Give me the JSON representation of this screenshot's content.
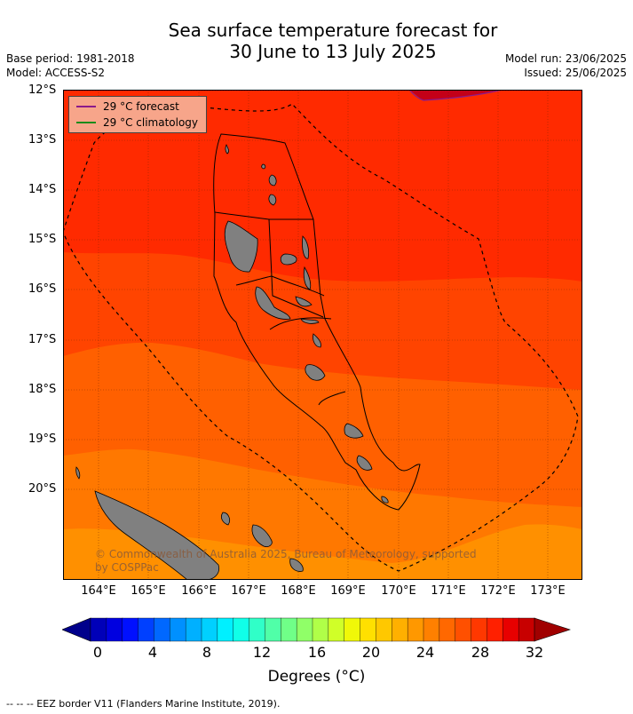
{
  "title_line1": "Sea surface temperature forecast for",
  "title_line2": "30 June to 13 July 2025",
  "base_period": "Base period: 1981-2018",
  "model": "Model: ACCESS-S2",
  "model_run": "Model run: 23/06/2025",
  "issued": "Issued: 25/06/2025",
  "lat_labels": [
    "12°S",
    "13°S",
    "14°S",
    "15°S",
    "16°S",
    "17°S",
    "18°S",
    "19°S",
    "20°S"
  ],
  "lon_labels": [
    "164°E",
    "165°E",
    "166°E",
    "167°E",
    "168°E",
    "169°E",
    "170°E",
    "171°E",
    "172°E",
    "173°E"
  ],
  "legend": {
    "forecast_label": "29 °C  forecast",
    "forecast_color": "#8b1a8b",
    "climatology_label": "29 °C  climatology",
    "climatology_color": "#1a8b1a"
  },
  "copyright_line1": "© Commonwealth of Australia 2025, Bureau of Meteorology, supported",
  "copyright_line2": "by COSPPac",
  "colorbar": {
    "ticks": [
      "0",
      "4",
      "8",
      "12",
      "16",
      "20",
      "24",
      "28",
      "32"
    ],
    "unit_label": "Degrees (°C)",
    "colors": [
      "#00008b",
      "#0000b8",
      "#0000e0",
      "#0010ff",
      "#0040ff",
      "#0068ff",
      "#0090ff",
      "#00b0ff",
      "#00d0ff",
      "#00f0ff",
      "#10ffe8",
      "#30ffc8",
      "#50ffa8",
      "#70ff88",
      "#90ff68",
      "#b0ff48",
      "#d0ff28",
      "#f0f808",
      "#ffe000",
      "#ffc800",
      "#ffb000",
      "#ff9800",
      "#ff8000",
      "#ff6800",
      "#ff5000",
      "#ff3800",
      "#ff2000",
      "#e80000",
      "#c80000",
      "#a00000"
    ]
  },
  "zones": {
    "z1": "#ff2a00",
    "z2": "#ff4400",
    "z3": "#ff6000",
    "z4": "#ff7800",
    "z5": "#ff9000",
    "hot": "#c40018",
    "land": "#808080"
  },
  "footer": "--  --  -- EEZ border V11 (Flanders Marine Institute, 2019)."
}
